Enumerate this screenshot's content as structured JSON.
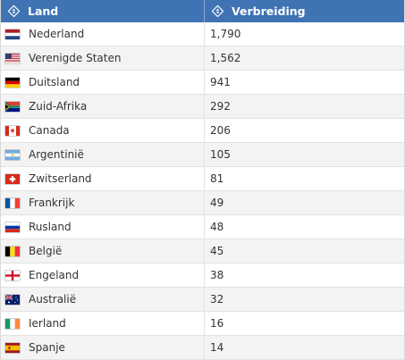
{
  "header": {
    "col_country": "Land",
    "col_spread": "Verbreiding",
    "sort_icon": "sort-diamond-icon"
  },
  "rows": [
    {
      "country": "Nederland",
      "value": "1,790",
      "flag": "flag-netherlands"
    },
    {
      "country": "Verenigde Staten",
      "value": "1,562",
      "flag": "flag-united-states"
    },
    {
      "country": "Duitsland",
      "value": "941",
      "flag": "flag-germany"
    },
    {
      "country": "Zuid-Afrika",
      "value": "292",
      "flag": "flag-south-africa"
    },
    {
      "country": "Canada",
      "value": "206",
      "flag": "flag-canada"
    },
    {
      "country": "Argentinië",
      "value": "105",
      "flag": "flag-argentina"
    },
    {
      "country": "Zwitserland",
      "value": "81",
      "flag": "flag-switzerland"
    },
    {
      "country": "Frankrijk",
      "value": "49",
      "flag": "flag-france"
    },
    {
      "country": "Rusland",
      "value": "48",
      "flag": "flag-russia"
    },
    {
      "country": "België",
      "value": "45",
      "flag": "flag-belgium"
    },
    {
      "country": "Engeland",
      "value": "38",
      "flag": "flag-england"
    },
    {
      "country": "Australië",
      "value": "32",
      "flag": "flag-australia"
    },
    {
      "country": "Ierland",
      "value": "16",
      "flag": "flag-ireland"
    },
    {
      "country": "Spanje",
      "value": "14",
      "flag": "flag-spain"
    }
  ],
  "colors": {
    "header_bg": "#3f73b4",
    "row_alt_bg": "#f3f3f3",
    "text": "#333333"
  }
}
